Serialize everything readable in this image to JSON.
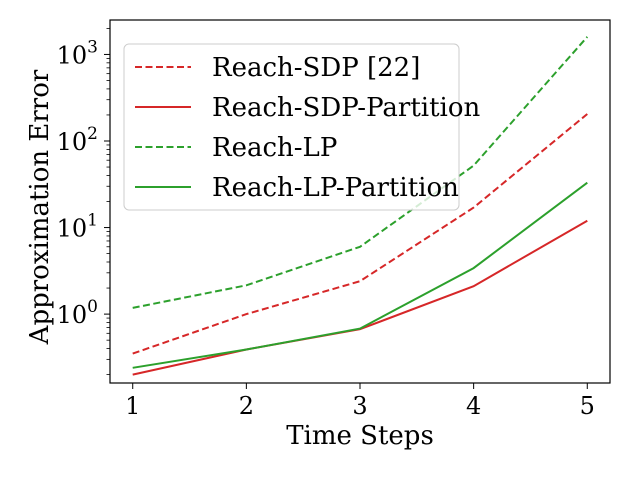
{
  "chart_data": {
    "type": "line",
    "x": [
      1,
      2,
      3,
      4,
      5
    ],
    "xlabel": "Time Steps",
    "ylabel": "Approximation Error",
    "y_scale": "log",
    "ylim": [
      0.16,
      2500
    ],
    "xlim": [
      0.8,
      5.2
    ],
    "x_ticks": [
      "1",
      "2",
      "3",
      "4",
      "5"
    ],
    "y_ticks": [
      {
        "value": 1,
        "base": "10",
        "exp": "0"
      },
      {
        "value": 10,
        "base": "10",
        "exp": "1"
      },
      {
        "value": 100,
        "base": "10",
        "exp": "2"
      },
      {
        "value": 1000,
        "base": "10",
        "exp": "3"
      }
    ],
    "grid": false,
    "legend_position": "top-left",
    "series": [
      {
        "name": "Reach-SDP [22]",
        "values": [
          0.35,
          1.0,
          2.4,
          17,
          205
        ],
        "color": "#d62728",
        "dash": "dashed"
      },
      {
        "name": "Reach-SDP-Partition",
        "values": [
          0.2,
          0.39,
          0.67,
          2.1,
          12
        ],
        "color": "#d62728",
        "dash": "solid"
      },
      {
        "name": "Reach-LP",
        "values": [
          1.18,
          2.15,
          6.0,
          52,
          1600
        ],
        "color": "#2ca02c",
        "dash": "dashed"
      },
      {
        "name": "Reach-LP-Partition",
        "values": [
          0.24,
          0.39,
          0.68,
          3.4,
          33
        ],
        "color": "#2ca02c",
        "dash": "solid"
      }
    ]
  }
}
